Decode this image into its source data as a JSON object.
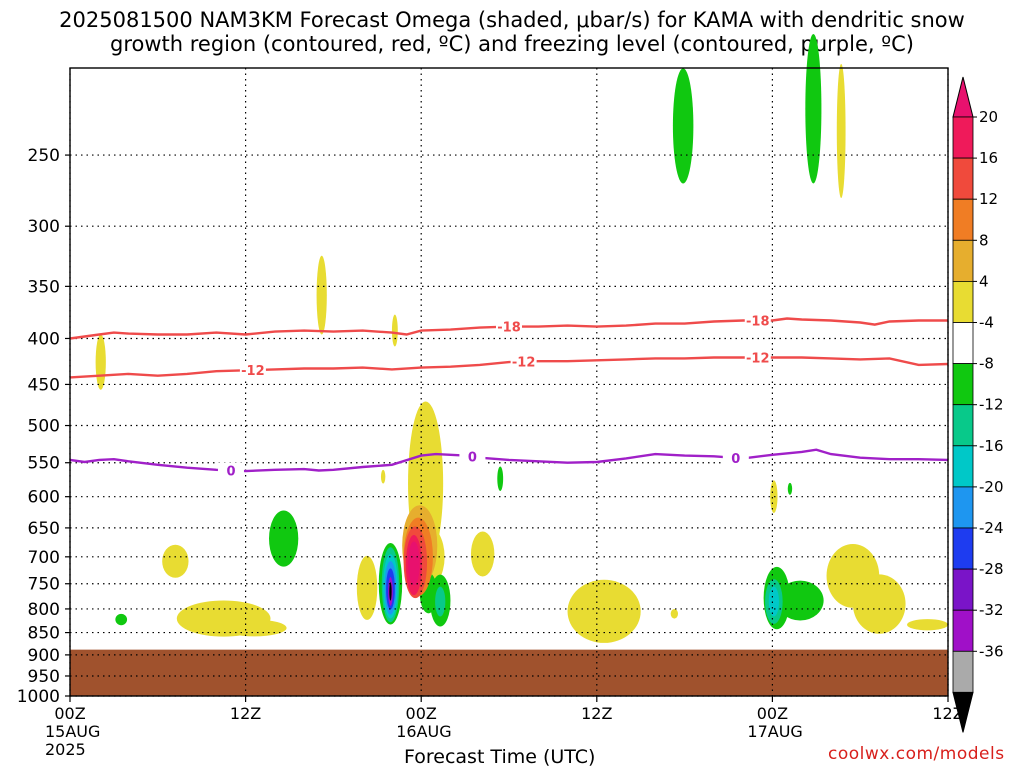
{
  "figure": {
    "title_line_1": "2025081500 NAM3KM Forecast Omega (shaded, μbar/s) for KAMA with dendritic snow",
    "title_line_2": "growth region (contoured, red, ºC) and freezing level (contoured, purple, ºC)",
    "x_axis_label": "Forecast Time (UTC)",
    "credit": "coolwx.com/models"
  },
  "chart_data": {
    "type": "heatmap",
    "x_unit": "forecast hour",
    "x_range": [
      0,
      60
    ],
    "y_unit": "hPa",
    "y_range": [
      200,
      1000
    ],
    "y_scale": "log-pressure",
    "grid": "dotted",
    "y_ticks": [
      250,
      300,
      350,
      400,
      450,
      500,
      550,
      600,
      650,
      700,
      750,
      800,
      850,
      900,
      950,
      1000
    ],
    "x_ticks": [
      {
        "hour": 0,
        "lines": [
          "00Z",
          "15AUG",
          "2025"
        ]
      },
      {
        "hour": 12,
        "lines": [
          "12Z"
        ]
      },
      {
        "hour": 24,
        "lines": [
          "00Z",
          "16AUG"
        ]
      },
      {
        "hour": 36,
        "lines": [
          "12Z"
        ]
      },
      {
        "hour": 48,
        "lines": [
          "00Z",
          "17AUG"
        ]
      },
      {
        "hour": 60,
        "lines": [
          "12Z"
        ]
      }
    ],
    "terrain": {
      "color": "#a0522d",
      "top_pressure": 888
    },
    "colorbar": {
      "labels": [
        "20",
        "16",
        "12",
        "8",
        "4",
        "-4",
        "-8",
        "-12",
        "-16",
        "-20",
        "-24",
        "-28",
        "-32",
        "-36"
      ],
      "colors": [
        "#ef1a5a",
        "#f04a3c",
        "#f07d24",
        "#e6ae2e",
        "#e8dc32",
        "#ffffff",
        "#10c810",
        "#08c98a",
        "#00c8c8",
        "#1e96f0",
        "#1e3cf0",
        "#7a14c8",
        "#a010c8",
        "#aaaaaa"
      ],
      "top_color": "#e8116e",
      "bottom_color": "#000000"
    },
    "contours": [
      {
        "label": "-18",
        "color": "#ef4b4b",
        "points": [
          [
            0,
            400
          ],
          [
            1,
            398
          ],
          [
            2,
            396
          ],
          [
            3,
            394
          ],
          [
            4,
            395
          ],
          [
            6,
            396
          ],
          [
            8,
            396
          ],
          [
            10,
            394
          ],
          [
            12,
            396
          ],
          [
            14,
            393
          ],
          [
            16,
            392
          ],
          [
            18,
            393
          ],
          [
            20,
            392
          ],
          [
            22,
            394
          ],
          [
            23,
            396
          ],
          [
            24,
            392
          ],
          [
            26,
            391
          ],
          [
            28,
            389
          ],
          [
            30,
            388
          ],
          [
            32,
            388
          ],
          [
            34,
            387
          ],
          [
            36,
            388
          ],
          [
            38,
            387
          ],
          [
            40,
            385
          ],
          [
            42,
            385
          ],
          [
            44,
            383
          ],
          [
            46,
            382
          ],
          [
            48,
            382
          ],
          [
            49,
            380
          ],
          [
            50,
            381
          ],
          [
            52,
            382
          ],
          [
            54,
            384
          ],
          [
            55,
            386
          ],
          [
            56,
            383
          ],
          [
            58,
            382
          ],
          [
            60,
            382
          ]
        ],
        "label_positions": [
          30,
          47
        ]
      },
      {
        "label": "-12",
        "color": "#ef4b4b",
        "points": [
          [
            0,
            442
          ],
          [
            2,
            440
          ],
          [
            4,
            438
          ],
          [
            6,
            440
          ],
          [
            8,
            438
          ],
          [
            10,
            435
          ],
          [
            12,
            434
          ],
          [
            14,
            433
          ],
          [
            16,
            432
          ],
          [
            18,
            432
          ],
          [
            20,
            431
          ],
          [
            22,
            433
          ],
          [
            24,
            431
          ],
          [
            26,
            430
          ],
          [
            28,
            428
          ],
          [
            30,
            425
          ],
          [
            32,
            424
          ],
          [
            34,
            424
          ],
          [
            36,
            423
          ],
          [
            38,
            422
          ],
          [
            40,
            421
          ],
          [
            42,
            421
          ],
          [
            44,
            420
          ],
          [
            46,
            420
          ],
          [
            48,
            420
          ],
          [
            50,
            420
          ],
          [
            52,
            421
          ],
          [
            54,
            422
          ],
          [
            56,
            421
          ],
          [
            58,
            428
          ],
          [
            60,
            427
          ]
        ],
        "label_positions": [
          12.5,
          31,
          47
        ]
      },
      {
        "label": "0",
        "color": "#a020c8",
        "points": [
          [
            0,
            546
          ],
          [
            1,
            549
          ],
          [
            2,
            546
          ],
          [
            3,
            545
          ],
          [
            4,
            548
          ],
          [
            6,
            553
          ],
          [
            8,
            557
          ],
          [
            10,
            560
          ],
          [
            12,
            562
          ],
          [
            14,
            560
          ],
          [
            16,
            559
          ],
          [
            17,
            561
          ],
          [
            18,
            560
          ],
          [
            20,
            556
          ],
          [
            22,
            553
          ],
          [
            24,
            540
          ],
          [
            25,
            538
          ],
          [
            27,
            540
          ],
          [
            28,
            543
          ],
          [
            30,
            546
          ],
          [
            32,
            548
          ],
          [
            34,
            550
          ],
          [
            36,
            549
          ],
          [
            38,
            544
          ],
          [
            40,
            538
          ],
          [
            42,
            540
          ],
          [
            44,
            541
          ],
          [
            46,
            544
          ],
          [
            48,
            539
          ],
          [
            50,
            535
          ],
          [
            51,
            532
          ],
          [
            52,
            538
          ],
          [
            54,
            543
          ],
          [
            56,
            545
          ],
          [
            58,
            545
          ],
          [
            60,
            546
          ]
        ],
        "label_positions": [
          11,
          27.5,
          45.5
        ]
      }
    ],
    "omega_regions": [
      {
        "value": 4,
        "x": 2.1,
        "p": 425,
        "rx": 0.35,
        "rp": 30
      },
      {
        "value": 4,
        "x": 7.2,
        "p": 708,
        "rx": 0.9,
        "rp": 30
      },
      {
        "value": 4,
        "x": 17.2,
        "p": 358,
        "rx": 0.35,
        "rp": 36
      },
      {
        "value": 4,
        "x": 22.2,
        "p": 392,
        "rx": 0.2,
        "rp": 16
      },
      {
        "value": 4,
        "x": 10.5,
        "p": 820,
        "rx": 3.2,
        "rp": 38
      },
      {
        "value": 4,
        "x": 12.6,
        "p": 840,
        "rx": 2.2,
        "rp": 18
      },
      {
        "value": 4,
        "x": 24.3,
        "p": 580,
        "rx": 1.2,
        "rp": 120
      },
      {
        "value": 4,
        "x": 24.2,
        "p": 700,
        "rx": 1.4,
        "rp": 60
      },
      {
        "value": 4,
        "x": 28.2,
        "p": 695,
        "rx": 0.8,
        "rp": 40
      },
      {
        "value": 4,
        "x": 21.4,
        "p": 570,
        "rx": 0.15,
        "rp": 10
      },
      {
        "value": 4,
        "x": 36.5,
        "p": 805,
        "rx": 2.5,
        "rp": 65
      },
      {
        "value": 4,
        "x": 41.3,
        "p": 810,
        "rx": 0.25,
        "rp": 10
      },
      {
        "value": 4,
        "x": 53.5,
        "p": 735,
        "rx": 1.8,
        "rp": 60
      },
      {
        "value": 4,
        "x": 55.3,
        "p": 790,
        "rx": 1.8,
        "rp": 60
      },
      {
        "value": 4,
        "x": 58.6,
        "p": 833,
        "rx": 1.4,
        "rp": 12
      },
      {
        "value": 4,
        "x": 52.7,
        "p": 235,
        "rx": 0.3,
        "rp": 40
      },
      {
        "value": 4,
        "x": 48.1,
        "p": 600,
        "rx": 0.25,
        "rp": 25
      },
      {
        "value": -4,
        "x": 3.5,
        "p": 822,
        "rx": 0.4,
        "rp": 12
      },
      {
        "value": -4,
        "x": 14.6,
        "p": 668,
        "rx": 1.0,
        "rp": 48
      },
      {
        "value": -4,
        "x": 41.9,
        "p": 232,
        "rx": 0.7,
        "rp": 34
      },
      {
        "value": -4,
        "x": 50.8,
        "p": 222,
        "rx": 0.55,
        "rp": 42
      },
      {
        "value": -4,
        "x": 25.3,
        "p": 783,
        "rx": 0.7,
        "rp": 52
      },
      {
        "value": -4,
        "x": 29.4,
        "p": 573,
        "rx": 0.2,
        "rp": 18
      },
      {
        "value": -4,
        "x": 49.9,
        "p": 783,
        "rx": 1.6,
        "rp": 40
      },
      {
        "value": -4,
        "x": 48.3,
        "p": 778,
        "rx": 0.9,
        "rp": 62
      },
      {
        "value": -4,
        "x": 49.2,
        "p": 588,
        "rx": 0.15,
        "rp": 9
      },
      {
        "value": -4,
        "x": 24.5,
        "p": 768,
        "rx": 0.6,
        "rp": 40
      },
      {
        "value": 8,
        "x": 23.9,
        "p": 680,
        "rx": 1.2,
        "rp": 70
      },
      {
        "value": 12,
        "x": 23.8,
        "p": 700,
        "rx": 1.0,
        "rp": 70
      },
      {
        "value": 16,
        "x": 23.6,
        "p": 710,
        "rx": 0.8,
        "rp": 65
      },
      {
        "value": 20,
        "x": 23.5,
        "p": 715,
        "rx": 0.55,
        "rp": 55
      },
      {
        "value": 24,
        "x": 23.5,
        "p": 712,
        "rx": 0.4,
        "rp": 40
      },
      {
        "value": 4,
        "x": 20.3,
        "p": 758,
        "rx": 0.7,
        "rp": 62
      },
      {
        "value": -4,
        "x": 21.9,
        "p": 750,
        "rx": 0.8,
        "rp": 78
      },
      {
        "value": -8,
        "x": 21.9,
        "p": 752,
        "rx": 0.6,
        "rp": 72
      },
      {
        "value": -12,
        "x": 21.9,
        "p": 755,
        "rx": 0.5,
        "rp": 62
      },
      {
        "value": -16,
        "x": 21.9,
        "p": 758,
        "rx": 0.4,
        "rp": 52
      },
      {
        "value": -20,
        "x": 21.9,
        "p": 760,
        "rx": 0.3,
        "rp": 40
      },
      {
        "value": -28,
        "x": 21.9,
        "p": 765,
        "rx": 0.16,
        "rp": 28
      },
      {
        "value": -36,
        "x": 21.9,
        "p": 765,
        "rx": 0.08,
        "rp": 18
      },
      {
        "value": -8,
        "x": 48.1,
        "p": 785,
        "rx": 0.6,
        "rp": 45
      },
      {
        "value": -12,
        "x": 48.1,
        "p": 785,
        "rx": 0.35,
        "rp": 30
      },
      {
        "value": -8,
        "x": 25.3,
        "p": 785,
        "rx": 0.35,
        "rp": 30
      }
    ]
  }
}
